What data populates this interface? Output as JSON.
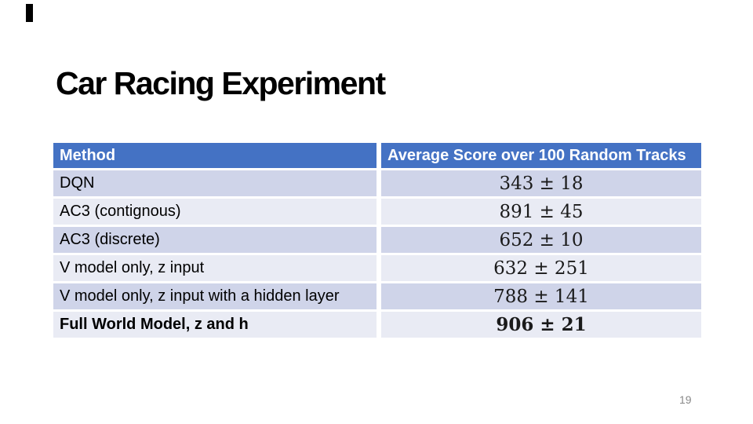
{
  "slide": {
    "title": "Car Racing Experiment",
    "page_number": "19"
  },
  "table": {
    "headers": {
      "method": "Method",
      "score": "Average Score over 100 Random Tracks"
    },
    "rows": [
      {
        "method": "DQN",
        "score": "343 ± 18"
      },
      {
        "method": "AC3 (contignous)",
        "score": "891 ± 45"
      },
      {
        "method": "AC3 (discrete)",
        "score": "652 ± 10"
      },
      {
        "method": "V model only, z input",
        "score": "632 ± 251"
      },
      {
        "method": "V model only, z input with a hidden layer",
        "score": "788 ± 141"
      },
      {
        "method": "Full World Model, z and h",
        "score": "906 ± 21"
      }
    ]
  },
  "colors": {
    "header_bg": "#4472C4",
    "header_text": "#FFFFFF",
    "row_dark": "#CFD4E9",
    "row_light": "#E9EBF4",
    "title_text": "#000000",
    "value_text": "#1A1A1A",
    "page_number_text": "#898989"
  }
}
